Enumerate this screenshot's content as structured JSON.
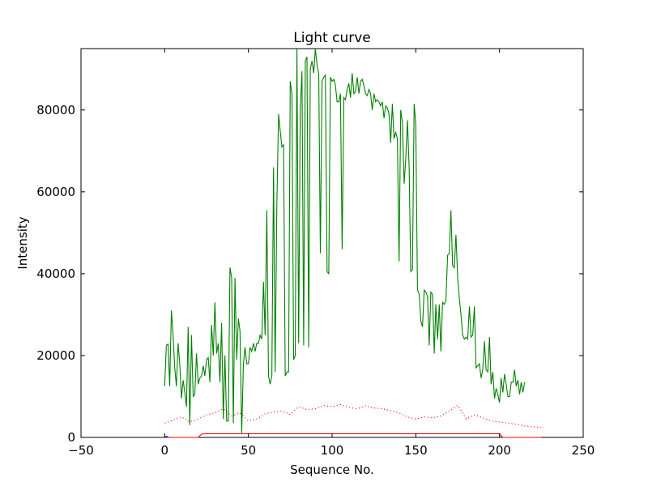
{
  "chart_data": {
    "type": "line",
    "title": "Light curve",
    "xlabel": "Sequence No.",
    "ylabel": "Intensity",
    "xlim": [
      -50,
      250
    ],
    "ylim": [
      0,
      95000
    ],
    "xticks": [
      -50,
      0,
      50,
      100,
      150,
      200,
      250
    ],
    "yticks": [
      0,
      20000,
      40000,
      60000,
      80000
    ],
    "grid": false,
    "series": [
      {
        "style": "solid",
        "color": "#008000",
        "points": [
          [
            0,
            12500
          ],
          [
            1,
            22500
          ],
          [
            2,
            22800
          ],
          [
            3,
            12500
          ],
          [
            4,
            31000
          ],
          [
            5,
            25000
          ],
          [
            6,
            17000
          ],
          [
            7,
            12500
          ],
          [
            8,
            23000
          ],
          [
            9,
            18000
          ],
          [
            10,
            9500
          ],
          [
            11,
            14000
          ],
          [
            12,
            11000
          ],
          [
            13,
            7500
          ],
          [
            14,
            27000
          ],
          [
            15,
            3000
          ],
          [
            16,
            25000
          ],
          [
            17,
            10000
          ],
          [
            18,
            10500
          ],
          [
            19,
            20500
          ],
          [
            20,
            13000
          ],
          [
            21,
            14500
          ],
          [
            22,
            15000
          ],
          [
            23,
            17500
          ],
          [
            24,
            15000
          ],
          [
            25,
            19000
          ],
          [
            26,
            19500
          ],
          [
            27,
            13500
          ],
          [
            28,
            27500
          ],
          [
            29,
            20000
          ],
          [
            30,
            33000
          ],
          [
            31,
            20500
          ],
          [
            32,
            23000
          ],
          [
            33,
            13500
          ],
          [
            34,
            28000
          ],
          [
            35,
            4500
          ],
          [
            36,
            20000
          ],
          [
            37,
            4000
          ],
          [
            38,
            4000
          ],
          [
            39,
            41500
          ],
          [
            40,
            39000
          ],
          [
            41,
            3500
          ],
          [
            42,
            39000
          ],
          [
            43,
            19000
          ],
          [
            44,
            29000
          ],
          [
            45,
            26000
          ],
          [
            46,
            1000
          ],
          [
            47,
            18000
          ],
          [
            48,
            22000
          ],
          [
            49,
            18000
          ],
          [
            50,
            18000
          ],
          [
            51,
            22000
          ],
          [
            52,
            21000
          ],
          [
            53,
            23000
          ],
          [
            54,
            21000
          ],
          [
            55,
            23000
          ],
          [
            56,
            23000
          ],
          [
            57,
            25000
          ],
          [
            58,
            24000
          ],
          [
            59,
            38000
          ],
          [
            60,
            25000
          ],
          [
            61,
            55500
          ],
          [
            62,
            15000
          ],
          [
            63,
            13000
          ],
          [
            64,
            15000
          ],
          [
            65,
            66000
          ],
          [
            66,
            16000
          ],
          [
            67,
            57000
          ],
          [
            68,
            79000
          ],
          [
            69,
            75000
          ],
          [
            70,
            71000
          ],
          [
            71,
            71500
          ],
          [
            72,
            15000
          ],
          [
            73,
            16000
          ],
          [
            74,
            16000
          ],
          [
            75,
            87000
          ],
          [
            76,
            84000
          ],
          [
            77,
            19000
          ],
          [
            78,
            20000
          ],
          [
            79,
            95000
          ],
          [
            80,
            23000
          ],
          [
            81,
            80000
          ],
          [
            82,
            89500
          ],
          [
            83,
            22500
          ],
          [
            84,
            92000
          ],
          [
            85,
            93000
          ],
          [
            86,
            22000
          ],
          [
            87,
            90000
          ],
          [
            88,
            92000
          ],
          [
            89,
            89000
          ],
          [
            90,
            96000
          ],
          [
            91,
            91000
          ],
          [
            92,
            89000
          ],
          [
            93,
            45000
          ],
          [
            94,
            87000
          ],
          [
            95,
            88000
          ],
          [
            96,
            88500
          ],
          [
            97,
            40500
          ],
          [
            98,
            40000
          ],
          [
            99,
            88000
          ],
          [
            100,
            87000
          ],
          [
            101,
            87500
          ],
          [
            102,
            86000
          ],
          [
            103,
            82000
          ],
          [
            104,
            82000
          ],
          [
            105,
            84000
          ],
          [
            106,
            46000
          ],
          [
            107,
            83000
          ],
          [
            108,
            82500
          ],
          [
            109,
            85000
          ],
          [
            110,
            86500
          ],
          [
            111,
            83000
          ],
          [
            112,
            89000
          ],
          [
            113,
            84000
          ],
          [
            114,
            84500
          ],
          [
            115,
            88000
          ],
          [
            116,
            84000
          ],
          [
            117,
            87000
          ],
          [
            118,
            87500
          ],
          [
            119,
            86000
          ],
          [
            120,
            84000
          ],
          [
            121,
            83500
          ],
          [
            122,
            85000
          ],
          [
            123,
            84000
          ],
          [
            124,
            80000
          ],
          [
            125,
            84000
          ],
          [
            126,
            82000
          ],
          [
            127,
            82500
          ],
          [
            128,
            82000
          ],
          [
            129,
            81000
          ],
          [
            130,
            82000
          ],
          [
            131,
            78000
          ],
          [
            132,
            81000
          ],
          [
            133,
            80500
          ],
          [
            134,
            79000
          ],
          [
            135,
            72000
          ],
          [
            136,
            81500
          ],
          [
            137,
            73000
          ],
          [
            138,
            74500
          ],
          [
            139,
            73000
          ],
          [
            140,
            43000
          ],
          [
            141,
            80000
          ],
          [
            142,
            77000
          ],
          [
            143,
            62000
          ],
          [
            144,
            68000
          ],
          [
            145,
            77500
          ],
          [
            146,
            66000
          ],
          [
            147,
            40500
          ],
          [
            148,
            41000
          ],
          [
            149,
            81500
          ],
          [
            150,
            76500
          ],
          [
            151,
            36000
          ],
          [
            152,
            35000
          ],
          [
            153,
            28500
          ],
          [
            154,
            27000
          ],
          [
            155,
            36000
          ],
          [
            156,
            35500
          ],
          [
            157,
            34500
          ],
          [
            158,
            22500
          ],
          [
            159,
            35500
          ],
          [
            160,
            35000
          ],
          [
            161,
            20500
          ],
          [
            162,
            32500
          ],
          [
            163,
            24000
          ],
          [
            164,
            32500
          ],
          [
            165,
            21000
          ],
          [
            166,
            33000
          ],
          [
            167,
            32500
          ],
          [
            168,
            33500
          ],
          [
            169,
            44500
          ],
          [
            170,
            45000
          ],
          [
            171,
            55500
          ],
          [
            172,
            42000
          ],
          [
            173,
            41500
          ],
          [
            174,
            49500
          ],
          [
            175,
            39000
          ],
          [
            176,
            34000
          ],
          [
            177,
            30000
          ],
          [
            178,
            25000
          ],
          [
            179,
            24000
          ],
          [
            180,
            24500
          ],
          [
            181,
            24000
          ],
          [
            182,
            32000
          ],
          [
            183,
            24500
          ],
          [
            184,
            25000
          ],
          [
            185,
            32000
          ],
          [
            186,
            17000
          ],
          [
            187,
            17500
          ],
          [
            188,
            18000
          ],
          [
            189,
            14500
          ],
          [
            190,
            16500
          ],
          [
            191,
            23500
          ],
          [
            192,
            16500
          ],
          [
            193,
            16000
          ],
          [
            194,
            24500
          ],
          [
            195,
            13000
          ],
          [
            196,
            16000
          ],
          [
            197,
            9500
          ],
          [
            198,
            12000
          ],
          [
            199,
            10500
          ],
          [
            200,
            8500
          ],
          [
            201,
            14500
          ],
          [
            202,
            11000
          ],
          [
            203,
            15500
          ],
          [
            204,
            13000
          ],
          [
            205,
            10000
          ],
          [
            206,
            10000
          ],
          [
            207,
            13500
          ],
          [
            208,
            13500
          ],
          [
            209,
            16500
          ],
          [
            210,
            12500
          ],
          [
            211,
            14000
          ],
          [
            212,
            10500
          ],
          [
            213,
            13500
          ],
          [
            214,
            11000
          ],
          [
            215,
            13500
          ]
        ]
      },
      {
        "style": "dotted",
        "color": "#ff0000",
        "points": [
          [
            0,
            3500
          ],
          [
            5,
            4200
          ],
          [
            10,
            5000
          ],
          [
            15,
            3800
          ],
          [
            20,
            4500
          ],
          [
            25,
            5500
          ],
          [
            30,
            6000
          ],
          [
            35,
            7000
          ],
          [
            40,
            5200
          ],
          [
            45,
            6000
          ],
          [
            50,
            4000
          ],
          [
            55,
            4500
          ],
          [
            60,
            5800
          ],
          [
            65,
            6200
          ],
          [
            70,
            6500
          ],
          [
            75,
            5600
          ],
          [
            80,
            7500
          ],
          [
            85,
            6800
          ],
          [
            90,
            7000
          ],
          [
            95,
            7800
          ],
          [
            100,
            7500
          ],
          [
            105,
            8000
          ],
          [
            110,
            7300
          ],
          [
            115,
            7000
          ],
          [
            120,
            7700
          ],
          [
            125,
            7200
          ],
          [
            130,
            7000
          ],
          [
            135,
            6500
          ],
          [
            140,
            6000
          ],
          [
            145,
            5000
          ],
          [
            150,
            4500
          ],
          [
            155,
            5000
          ],
          [
            160,
            4800
          ],
          [
            165,
            5200
          ],
          [
            170,
            6500
          ],
          [
            175,
            7800
          ],
          [
            178,
            6000
          ],
          [
            180,
            4500
          ],
          [
            185,
            5500
          ],
          [
            190,
            4800
          ],
          [
            195,
            4000
          ],
          [
            200,
            3800
          ],
          [
            205,
            3500
          ],
          [
            210,
            3200
          ],
          [
            215,
            2800
          ],
          [
            220,
            2600
          ],
          [
            225,
            2400
          ]
        ]
      },
      {
        "style": "solid",
        "color": "#ff0000",
        "points": [
          [
            0,
            0
          ],
          [
            20,
            0
          ],
          [
            22,
            800
          ],
          [
            24,
            900
          ],
          [
            200,
            900
          ],
          [
            202,
            0
          ],
          [
            225,
            0
          ]
        ]
      },
      {
        "style": "solid",
        "color": "#0000ff",
        "points": [
          [
            0,
            0
          ],
          [
            1,
            300
          ],
          [
            2,
            0
          ],
          [
            3,
            0
          ]
        ]
      }
    ]
  }
}
